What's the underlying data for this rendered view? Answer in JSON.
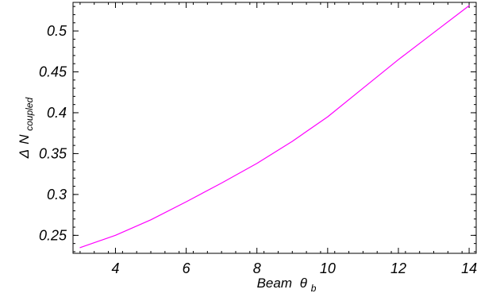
{
  "chart_data": {
    "type": "line",
    "title": "",
    "xlabel": {
      "prefix": "Beam",
      "symbol": "θ",
      "subscript": "b"
    },
    "ylabel": {
      "prefix": "Δ",
      "symbol": "N",
      "subscript": "coupled"
    },
    "xlim": [
      2.8,
      14.2
    ],
    "ylim": [
      0.228,
      0.535
    ],
    "x_ticks": [
      4,
      6,
      8,
      10,
      12,
      14
    ],
    "y_ticks": [
      0.25,
      0.3,
      0.35,
      0.4,
      0.45,
      0.5
    ],
    "x_tick_labels": [
      "4",
      "6",
      "8",
      "10",
      "12",
      "14"
    ],
    "y_tick_labels": [
      "0.25",
      "0.3",
      "0.35",
      "0.4",
      "0.45",
      "0.5"
    ],
    "grid": false,
    "series": [
      {
        "color": "#ff00ff",
        "x": [
          3,
          4,
          5,
          6,
          7,
          8,
          9,
          10,
          11,
          12,
          13,
          14
        ],
        "y": [
          0.235,
          0.25,
          0.269,
          0.291,
          0.314,
          0.338,
          0.365,
          0.395,
          0.43,
          0.465,
          0.498,
          0.531
        ]
      }
    ]
  }
}
